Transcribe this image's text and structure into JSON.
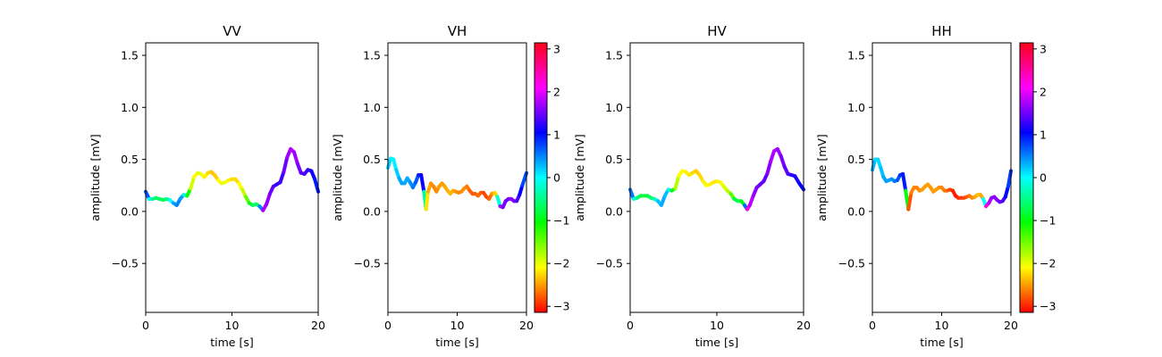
{
  "chart_data": [
    {
      "type": "line",
      "title": "VV",
      "xlabel": "time [s]",
      "ylabel": "amplitude [mV]",
      "xlim": [
        0,
        20
      ],
      "ylim": [
        -0.97,
        1.62
      ],
      "xticks": [
        "0",
        "10",
        "20"
      ],
      "yticks": [
        "−0.5",
        "0.0",
        "0.5",
        "1.0",
        "1.5"
      ],
      "colorbar": false,
      "series": [
        {
          "color_by": "phase",
          "points": [
            [
              0,
              0.19
            ],
            [
              0.4,
              0.12
            ],
            [
              0.8,
              0.12
            ],
            [
              1.2,
              0.13
            ],
            [
              1.6,
              0.12
            ],
            [
              2,
              0.11
            ],
            [
              2.4,
              0.12
            ],
            [
              2.8,
              0.11
            ],
            [
              3.2,
              0.08
            ],
            [
              3.6,
              0.06
            ],
            [
              4,
              0.12
            ],
            [
              4.4,
              0.16
            ],
            [
              4.8,
              0.15
            ],
            [
              5.2,
              0.22
            ],
            [
              5.6,
              0.33
            ],
            [
              6,
              0.37
            ],
            [
              6.4,
              0.36
            ],
            [
              6.8,
              0.33
            ],
            [
              7.2,
              0.37
            ],
            [
              7.6,
              0.38
            ],
            [
              8,
              0.35
            ],
            [
              8.4,
              0.3
            ],
            [
              8.8,
              0.27
            ],
            [
              9.2,
              0.28
            ],
            [
              9.6,
              0.3
            ],
            [
              10,
              0.31
            ],
            [
              10.4,
              0.31
            ],
            [
              10.8,
              0.27
            ],
            [
              11.2,
              0.21
            ],
            [
              11.6,
              0.14
            ],
            [
              12,
              0.08
            ],
            [
              12.4,
              0.06
            ],
            [
              12.8,
              0.07
            ],
            [
              13.2,
              0.05
            ],
            [
              13.6,
              0.01
            ],
            [
              14,
              0.07
            ],
            [
              14.4,
              0.17
            ],
            [
              14.8,
              0.24
            ],
            [
              15.2,
              0.26
            ],
            [
              15.6,
              0.28
            ],
            [
              16,
              0.38
            ],
            [
              16.4,
              0.52
            ],
            [
              16.8,
              0.6
            ],
            [
              17.2,
              0.57
            ],
            [
              17.6,
              0.46
            ],
            [
              18,
              0.37
            ],
            [
              18.4,
              0.36
            ],
            [
              18.8,
              0.4
            ],
            [
              19.2,
              0.39
            ],
            [
              19.6,
              0.31
            ],
            [
              20,
              0.19
            ]
          ],
          "phase": [
            1.1,
            0.3,
            -0.4,
            -0.6,
            -0.7,
            -0.6,
            -0.7,
            -0.3,
            0.3,
            0.5,
            0.5,
            0.3,
            -0.6,
            -1.6,
            -2.2,
            -2.0,
            -2.0,
            -2.1,
            -2.2,
            -2.3,
            -2.4,
            -2.2,
            -2.0,
            -2.0,
            -2.1,
            -2.2,
            -2.3,
            -2.2,
            -2.0,
            -1.7,
            -1.2,
            -0.7,
            -0.5,
            -0.8,
            1.8,
            1.7,
            1.6,
            1.4,
            1.3,
            1.2,
            1.4,
            1.6,
            1.8,
            1.8,
            1.6,
            1.5,
            1.4,
            1.3,
            1.2,
            1.0,
            0.9
          ]
        }
      ]
    },
    {
      "type": "line",
      "title": "VH",
      "xlabel": "time [s]",
      "ylabel": "amplitude [mV]",
      "xlim": [
        0,
        20
      ],
      "ylim": [
        -0.97,
        1.62
      ],
      "xticks": [
        "0",
        "10",
        "20"
      ],
      "yticks": [
        "−0.5",
        "0.0",
        "0.5",
        "1.0",
        "1.5"
      ],
      "colorbar": true,
      "colorbar_ticks": [
        "−3",
        "−2",
        "−1",
        "0",
        "1",
        "2",
        "3"
      ],
      "series": [
        {
          "color_by": "phase",
          "points": [
            [
              0,
              0.42
            ],
            [
              0.4,
              0.51
            ],
            [
              0.8,
              0.5
            ],
            [
              1.2,
              0.4
            ],
            [
              1.6,
              0.32
            ],
            [
              2,
              0.27
            ],
            [
              2.4,
              0.27
            ],
            [
              2.8,
              0.32
            ],
            [
              3.2,
              0.28
            ],
            [
              3.6,
              0.23
            ],
            [
              4,
              0.28
            ],
            [
              4.4,
              0.35
            ],
            [
              4.8,
              0.35
            ],
            [
              5.2,
              0.19
            ],
            [
              5.5,
              0.02
            ],
            [
              5.8,
              0.19
            ],
            [
              6.2,
              0.27
            ],
            [
              6.6,
              0.24
            ],
            [
              7,
              0.19
            ],
            [
              7.4,
              0.24
            ],
            [
              7.8,
              0.27
            ],
            [
              8.2,
              0.24
            ],
            [
              8.6,
              0.2
            ],
            [
              9,
              0.17
            ],
            [
              9.4,
              0.2
            ],
            [
              9.8,
              0.19
            ],
            [
              10.2,
              0.18
            ],
            [
              10.6,
              0.19
            ],
            [
              11,
              0.22
            ],
            [
              11.4,
              0.24
            ],
            [
              11.8,
              0.2
            ],
            [
              12.2,
              0.17
            ],
            [
              12.6,
              0.17
            ],
            [
              13,
              0.15
            ],
            [
              13.4,
              0.18
            ],
            [
              13.8,
              0.18
            ],
            [
              14.2,
              0.14
            ],
            [
              14.6,
              0.12
            ],
            [
              15,
              0.17
            ],
            [
              15.4,
              0.18
            ],
            [
              15.8,
              0.14
            ],
            [
              16.2,
              0.05
            ],
            [
              16.6,
              0.04
            ],
            [
              17,
              0.1
            ],
            [
              17.4,
              0.12
            ],
            [
              17.8,
              0.12
            ],
            [
              18.2,
              0.1
            ],
            [
              18.6,
              0.1
            ],
            [
              19,
              0.16
            ],
            [
              19.4,
              0.25
            ],
            [
              20,
              0.37
            ]
          ],
          "phase": [
            0.2,
            0.1,
            0.0,
            0.1,
            0.3,
            0.4,
            0.4,
            0.3,
            0.4,
            0.5,
            0.6,
            0.8,
            1.0,
            1.2,
            -2.0,
            -2.4,
            -2.5,
            -2.6,
            -2.6,
            -2.5,
            -2.5,
            -2.5,
            -2.4,
            -2.4,
            -2.4,
            -2.5,
            -2.6,
            -2.6,
            -2.5,
            -2.6,
            -2.7,
            -2.8,
            -2.8,
            -2.7,
            -2.7,
            -2.8,
            -2.9,
            -2.8,
            -2.6,
            -2.4,
            -2.1,
            1.8,
            1.6,
            1.5,
            1.5,
            1.6,
            1.6,
            1.5,
            1.2,
            0.9,
            0.6
          ]
        }
      ]
    },
    {
      "type": "line",
      "title": "HV",
      "xlabel": "time [s]",
      "ylabel": "amplitude [mV]",
      "xlim": [
        0,
        20
      ],
      "ylim": [
        -0.97,
        1.62
      ],
      "xticks": [
        "0",
        "10",
        "20"
      ],
      "yticks": [
        "−0.5",
        "0.0",
        "0.5",
        "1.0",
        "1.5"
      ],
      "colorbar": false,
      "series": [
        {
          "color_by": "phase",
          "points": [
            [
              0,
              0.21
            ],
            [
              0.4,
              0.12
            ],
            [
              0.8,
              0.13
            ],
            [
              1.2,
              0.15
            ],
            [
              1.6,
              0.15
            ],
            [
              2,
              0.15
            ],
            [
              2.4,
              0.13
            ],
            [
              2.8,
              0.12
            ],
            [
              3.2,
              0.1
            ],
            [
              3.6,
              0.06
            ],
            [
              4,
              0.15
            ],
            [
              4.4,
              0.21
            ],
            [
              4.8,
              0.2
            ],
            [
              5.2,
              0.22
            ],
            [
              5.6,
              0.34
            ],
            [
              6,
              0.39
            ],
            [
              6.4,
              0.38
            ],
            [
              6.8,
              0.35
            ],
            [
              7.2,
              0.37
            ],
            [
              7.6,
              0.39
            ],
            [
              8,
              0.35
            ],
            [
              8.4,
              0.29
            ],
            [
              8.8,
              0.25
            ],
            [
              9.2,
              0.26
            ],
            [
              9.6,
              0.28
            ],
            [
              10,
              0.29
            ],
            [
              10.4,
              0.28
            ],
            [
              10.8,
              0.24
            ],
            [
              11.2,
              0.2
            ],
            [
              11.6,
              0.17
            ],
            [
              12,
              0.12
            ],
            [
              12.4,
              0.1
            ],
            [
              12.8,
              0.1
            ],
            [
              13.2,
              0.06
            ],
            [
              13.5,
              0.02
            ],
            [
              13.8,
              0.06
            ],
            [
              14.2,
              0.15
            ],
            [
              14.6,
              0.23
            ],
            [
              15,
              0.26
            ],
            [
              15.4,
              0.29
            ],
            [
              15.8,
              0.36
            ],
            [
              16.2,
              0.48
            ],
            [
              16.6,
              0.58
            ],
            [
              17,
              0.6
            ],
            [
              17.4,
              0.53
            ],
            [
              17.8,
              0.43
            ],
            [
              18.2,
              0.36
            ],
            [
              18.6,
              0.35
            ],
            [
              19,
              0.34
            ],
            [
              19.5,
              0.27
            ],
            [
              20,
              0.21
            ]
          ],
          "phase": [
            0.9,
            0.2,
            -0.5,
            -0.7,
            -0.8,
            -0.8,
            -0.7,
            -0.5,
            0.1,
            0.4,
            0.3,
            0.2,
            -0.4,
            -1.5,
            -2.1,
            -2.1,
            -2.1,
            -2.2,
            -2.2,
            -2.3,
            -2.3,
            -2.2,
            -2.1,
            -2.1,
            -2.2,
            -2.2,
            -2.1,
            -2.0,
            -1.9,
            -1.7,
            -1.1,
            -0.6,
            -0.7,
            -1.3,
            2.5,
            1.9,
            1.7,
            1.6,
            1.5,
            1.4,
            1.5,
            1.7,
            1.8,
            1.8,
            1.6,
            1.5,
            1.4,
            1.3,
            1.2,
            1.1,
            1.0
          ]
        }
      ]
    },
    {
      "type": "line",
      "title": "HH",
      "xlabel": "time [s]",
      "ylabel": "amplitude [mV]",
      "xlim": [
        0,
        20
      ],
      "ylim": [
        -0.97,
        1.62
      ],
      "xticks": [
        "0",
        "10",
        "20"
      ],
      "yticks": [
        "−0.5",
        "0.0",
        "0.5",
        "1.0",
        "1.5"
      ],
      "colorbar": true,
      "colorbar_ticks": [
        "−3",
        "−2",
        "−1",
        "0",
        "1",
        "2",
        "3"
      ],
      "series": [
        {
          "color_by": "phase",
          "points": [
            [
              0,
              0.4
            ],
            [
              0.4,
              0.5
            ],
            [
              0.8,
              0.5
            ],
            [
              1.2,
              0.42
            ],
            [
              1.6,
              0.33
            ],
            [
              2,
              0.29
            ],
            [
              2.4,
              0.3
            ],
            [
              2.8,
              0.31
            ],
            [
              3.2,
              0.29
            ],
            [
              3.6,
              0.3
            ],
            [
              4,
              0.35
            ],
            [
              4.4,
              0.36
            ],
            [
              4.8,
              0.2
            ],
            [
              5.2,
              0.02
            ],
            [
              5.6,
              0.18
            ],
            [
              6,
              0.23
            ],
            [
              6.4,
              0.23
            ],
            [
              6.8,
              0.2
            ],
            [
              7.2,
              0.21
            ],
            [
              7.6,
              0.24
            ],
            [
              8,
              0.26
            ],
            [
              8.4,
              0.23
            ],
            [
              8.8,
              0.19
            ],
            [
              9.2,
              0.21
            ],
            [
              9.6,
              0.23
            ],
            [
              10,
              0.23
            ],
            [
              10.4,
              0.2
            ],
            [
              10.8,
              0.2
            ],
            [
              11.2,
              0.21
            ],
            [
              11.6,
              0.2
            ],
            [
              12,
              0.15
            ],
            [
              12.4,
              0.13
            ],
            [
              12.8,
              0.13
            ],
            [
              13.2,
              0.13
            ],
            [
              13.6,
              0.14
            ],
            [
              14,
              0.15
            ],
            [
              14.4,
              0.13
            ],
            [
              14.8,
              0.14
            ],
            [
              15.2,
              0.16
            ],
            [
              15.6,
              0.16
            ],
            [
              16,
              0.12
            ],
            [
              16.4,
              0.05
            ],
            [
              16.8,
              0.08
            ],
            [
              17.2,
              0.13
            ],
            [
              17.6,
              0.14
            ],
            [
              18,
              0.11
            ],
            [
              18.4,
              0.09
            ],
            [
              18.8,
              0.1
            ],
            [
              19.2,
              0.14
            ],
            [
              19.6,
              0.24
            ],
            [
              20,
              0.39
            ]
          ],
          "phase": [
            0.4,
            0.2,
            0.1,
            0.2,
            0.3,
            0.4,
            0.4,
            0.4,
            0.5,
            0.6,
            0.8,
            0.9,
            1.0,
            -3.0,
            -2.6,
            -2.6,
            -2.6,
            -2.6,
            -2.5,
            -2.5,
            -2.5,
            -2.5,
            -2.5,
            -2.5,
            -2.5,
            -2.6,
            -2.6,
            -2.7,
            -2.8,
            -2.9,
            -3.1,
            -3.0,
            -2.9,
            -2.9,
            -2.8,
            -2.7,
            -2.6,
            -2.5,
            -2.4,
            -2.3,
            -2.6,
            2.6,
            1.9,
            1.7,
            1.6,
            1.6,
            1.5,
            1.5,
            1.2,
            0.9,
            0.7
          ]
        }
      ]
    }
  ]
}
